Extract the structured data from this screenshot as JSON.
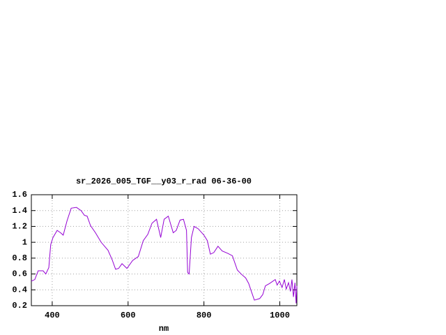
{
  "chart_data": {
    "type": "line",
    "title": "sr_2026_005_TGF__y03_r_rad 06-36-00",
    "x_label": "nm",
    "x": [
      345,
      354,
      363,
      376,
      383,
      391,
      396,
      402,
      413,
      422,
      429,
      439,
      450,
      464,
      476,
      485,
      492,
      501,
      514,
      529,
      547,
      558,
      567,
      575,
      584,
      597,
      612,
      627,
      640,
      652,
      663,
      675,
      686,
      695,
      706,
      719,
      727,
      737,
      746,
      754,
      757,
      761,
      767,
      774,
      785,
      800,
      809,
      817,
      826,
      837,
      848,
      863,
      875,
      888,
      898,
      910,
      918,
      925,
      933,
      947,
      955,
      962,
      973,
      982,
      988,
      993,
      999,
      1006,
      1012,
      1017,
      1023,
      1028,
      1032,
      1036,
      1040,
      1043,
      1045
    ],
    "values": [
      0.51,
      0.53,
      0.64,
      0.64,
      0.6,
      0.68,
      0.97,
      1.06,
      1.15,
      1.12,
      1.09,
      1.27,
      1.43,
      1.44,
      1.4,
      1.34,
      1.33,
      1.21,
      1.12,
      1.0,
      0.9,
      0.78,
      0.66,
      0.67,
      0.73,
      0.67,
      0.77,
      0.82,
      1.02,
      1.1,
      1.24,
      1.29,
      1.06,
      1.29,
      1.33,
      1.12,
      1.15,
      1.28,
      1.29,
      1.15,
      0.62,
      0.6,
      1.06,
      1.2,
      1.17,
      1.09,
      1.02,
      0.85,
      0.87,
      0.95,
      0.89,
      0.86,
      0.83,
      0.65,
      0.6,
      0.55,
      0.48,
      0.38,
      0.27,
      0.29,
      0.34,
      0.45,
      0.48,
      0.51,
      0.53,
      0.46,
      0.51,
      0.43,
      0.53,
      0.41,
      0.49,
      0.38,
      0.53,
      0.31,
      0.49,
      0.23,
      0.45
    ],
    "color": "#9400d3",
    "xlim": [
      345,
      1045
    ],
    "xticks": [
      400,
      600,
      800,
      1000
    ],
    "ylim": [
      0.2,
      1.6
    ],
    "yticks": [
      0.2,
      0.4,
      0.6,
      0.8,
      1,
      1.2,
      1.4,
      1.6
    ],
    "grid": true
  }
}
